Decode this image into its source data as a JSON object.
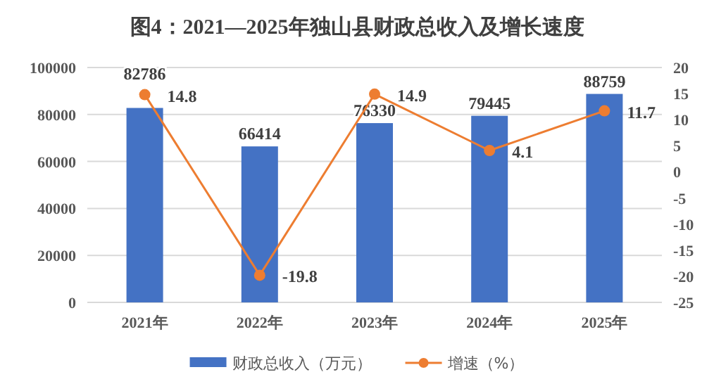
{
  "chart_data": {
    "type": "bar",
    "title": "图4：2021—2025年独山县财政总收入及增长速度",
    "categories": [
      "2021年",
      "2022年",
      "2023年",
      "2024年",
      "2025年"
    ],
    "series": [
      {
        "name": "财政总收入（万元）",
        "color": "#4472c4",
        "values": [
          82786,
          66414,
          76330,
          79445,
          88759
        ]
      },
      {
        "name": "增速（%）",
        "type": "line",
        "axis": "y2",
        "color": "#ed7d31",
        "values": [
          14.8,
          -19.8,
          14.9,
          4.1,
          11.7
        ]
      }
    ],
    "ylim": [
      0,
      100000
    ],
    "yticks": [
      0,
      20000,
      40000,
      60000,
      80000,
      100000
    ],
    "y2lim": [
      -25,
      20
    ],
    "y2ticks": [
      -25,
      -20,
      -15,
      -10,
      -5,
      0,
      5,
      10,
      15,
      20
    ],
    "data_labels": true,
    "grid": "y",
    "legend": "bottom",
    "marker": "circle",
    "line_style": "solid"
  }
}
